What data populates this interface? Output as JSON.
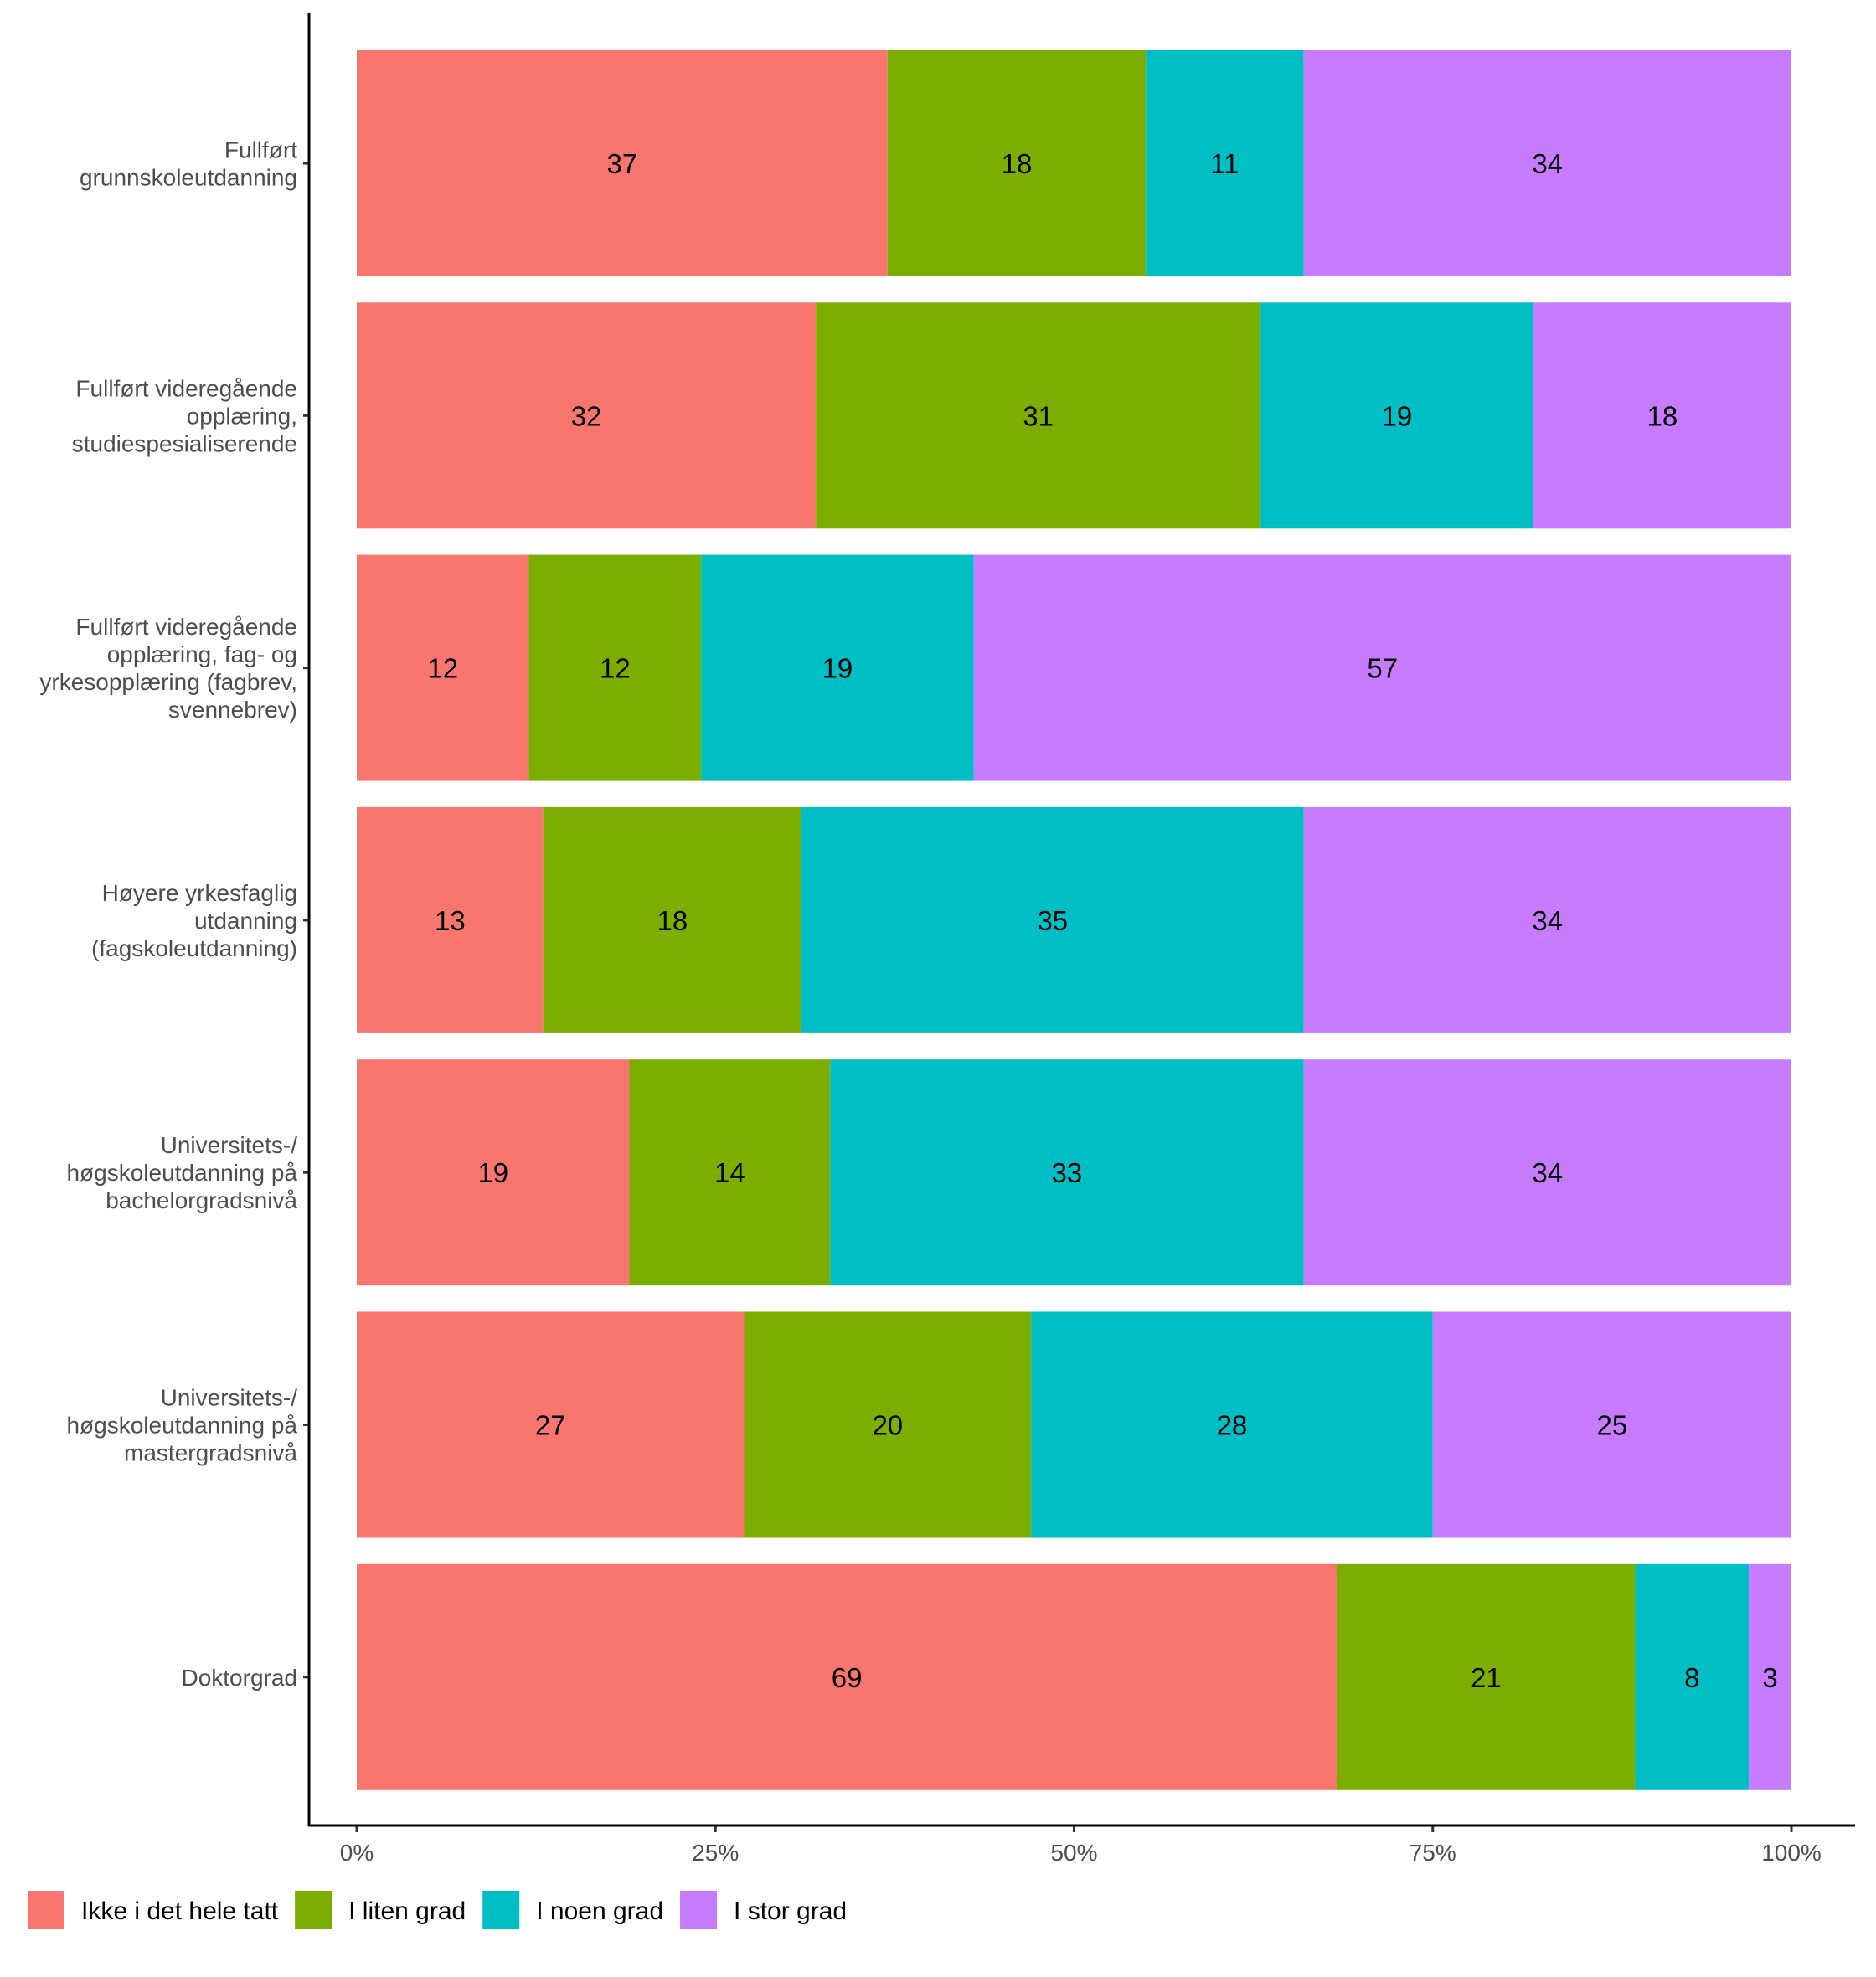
{
  "chart_data": {
    "type": "bar",
    "orientation": "horizontal",
    "stacked": "percent",
    "title": "",
    "xlabel": "",
    "ylabel": "",
    "xlim": [
      0,
      100
    ],
    "x_ticks": [
      "0%",
      "25%",
      "50%",
      "75%",
      "100%"
    ],
    "x_tick_values": [
      0,
      25,
      50,
      75,
      100
    ],
    "grid": false,
    "legend_position": "bottom",
    "categories": [
      [
        "Fullført",
        "grunnskoleutdanning"
      ],
      [
        "Fullført videregående",
        "opplæring,",
        "studiespesialiserende"
      ],
      [
        "Fullført videregående",
        "opplæring, fag- og",
        "yrkesopplæring (fagbrev,",
        "svennebrev)"
      ],
      [
        "Høyere yrkesfaglig",
        "utdanning",
        "(fagskoleutdanning)"
      ],
      [
        "Universitets-/",
        "høgskoleutdanning på",
        "bachelorgradsnivå"
      ],
      [
        "Universitets-/",
        "høgskoleutdanning på",
        "mastergradsnivå"
      ],
      [
        "Doktorgrad"
      ]
    ],
    "series": [
      {
        "name": "Ikke i det hele tatt",
        "color": "#F8766D",
        "values": [
          37,
          32,
          12,
          13,
          19,
          27,
          69
        ]
      },
      {
        "name": "I liten grad",
        "color": "#7CAE00",
        "values": [
          18,
          31,
          12,
          18,
          14,
          20,
          21
        ]
      },
      {
        "name": "I noen grad",
        "color": "#00BFC4",
        "values": [
          11,
          19,
          19,
          35,
          33,
          28,
          8
        ]
      },
      {
        "name": "I stor grad",
        "color": "#C77CFF",
        "values": [
          34,
          18,
          57,
          34,
          34,
          25,
          3
        ]
      }
    ]
  }
}
